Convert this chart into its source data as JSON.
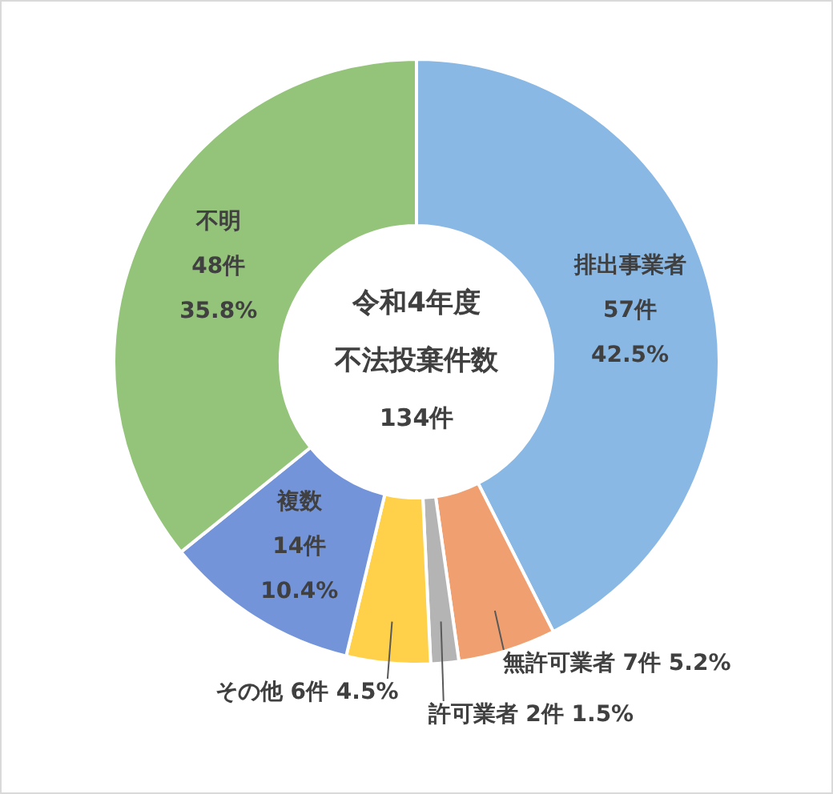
{
  "chart_data": {
    "type": "donut",
    "title": "令和4年度",
    "subtitle": "不法投棄件数",
    "annotations": [
      "134件"
    ],
    "categories": [
      "排出事業者",
      "無許可業者",
      "許可業者",
      "その他",
      "複数",
      "不明"
    ],
    "values": [
      57,
      7,
      2,
      6,
      14,
      48
    ],
    "colors": [
      "#8ab8e4",
      "#f0a070",
      "#b4b4b4",
      "#ffd04a",
      "#7494da",
      "#94c47a"
    ],
    "value_labels": [
      "57件 42.5%",
      "7件 5.2%",
      "2件 1.5%",
      "6件 4.5%",
      "14件 10.4%",
      "48件 35.8%"
    ],
    "legend": false
  }
}
